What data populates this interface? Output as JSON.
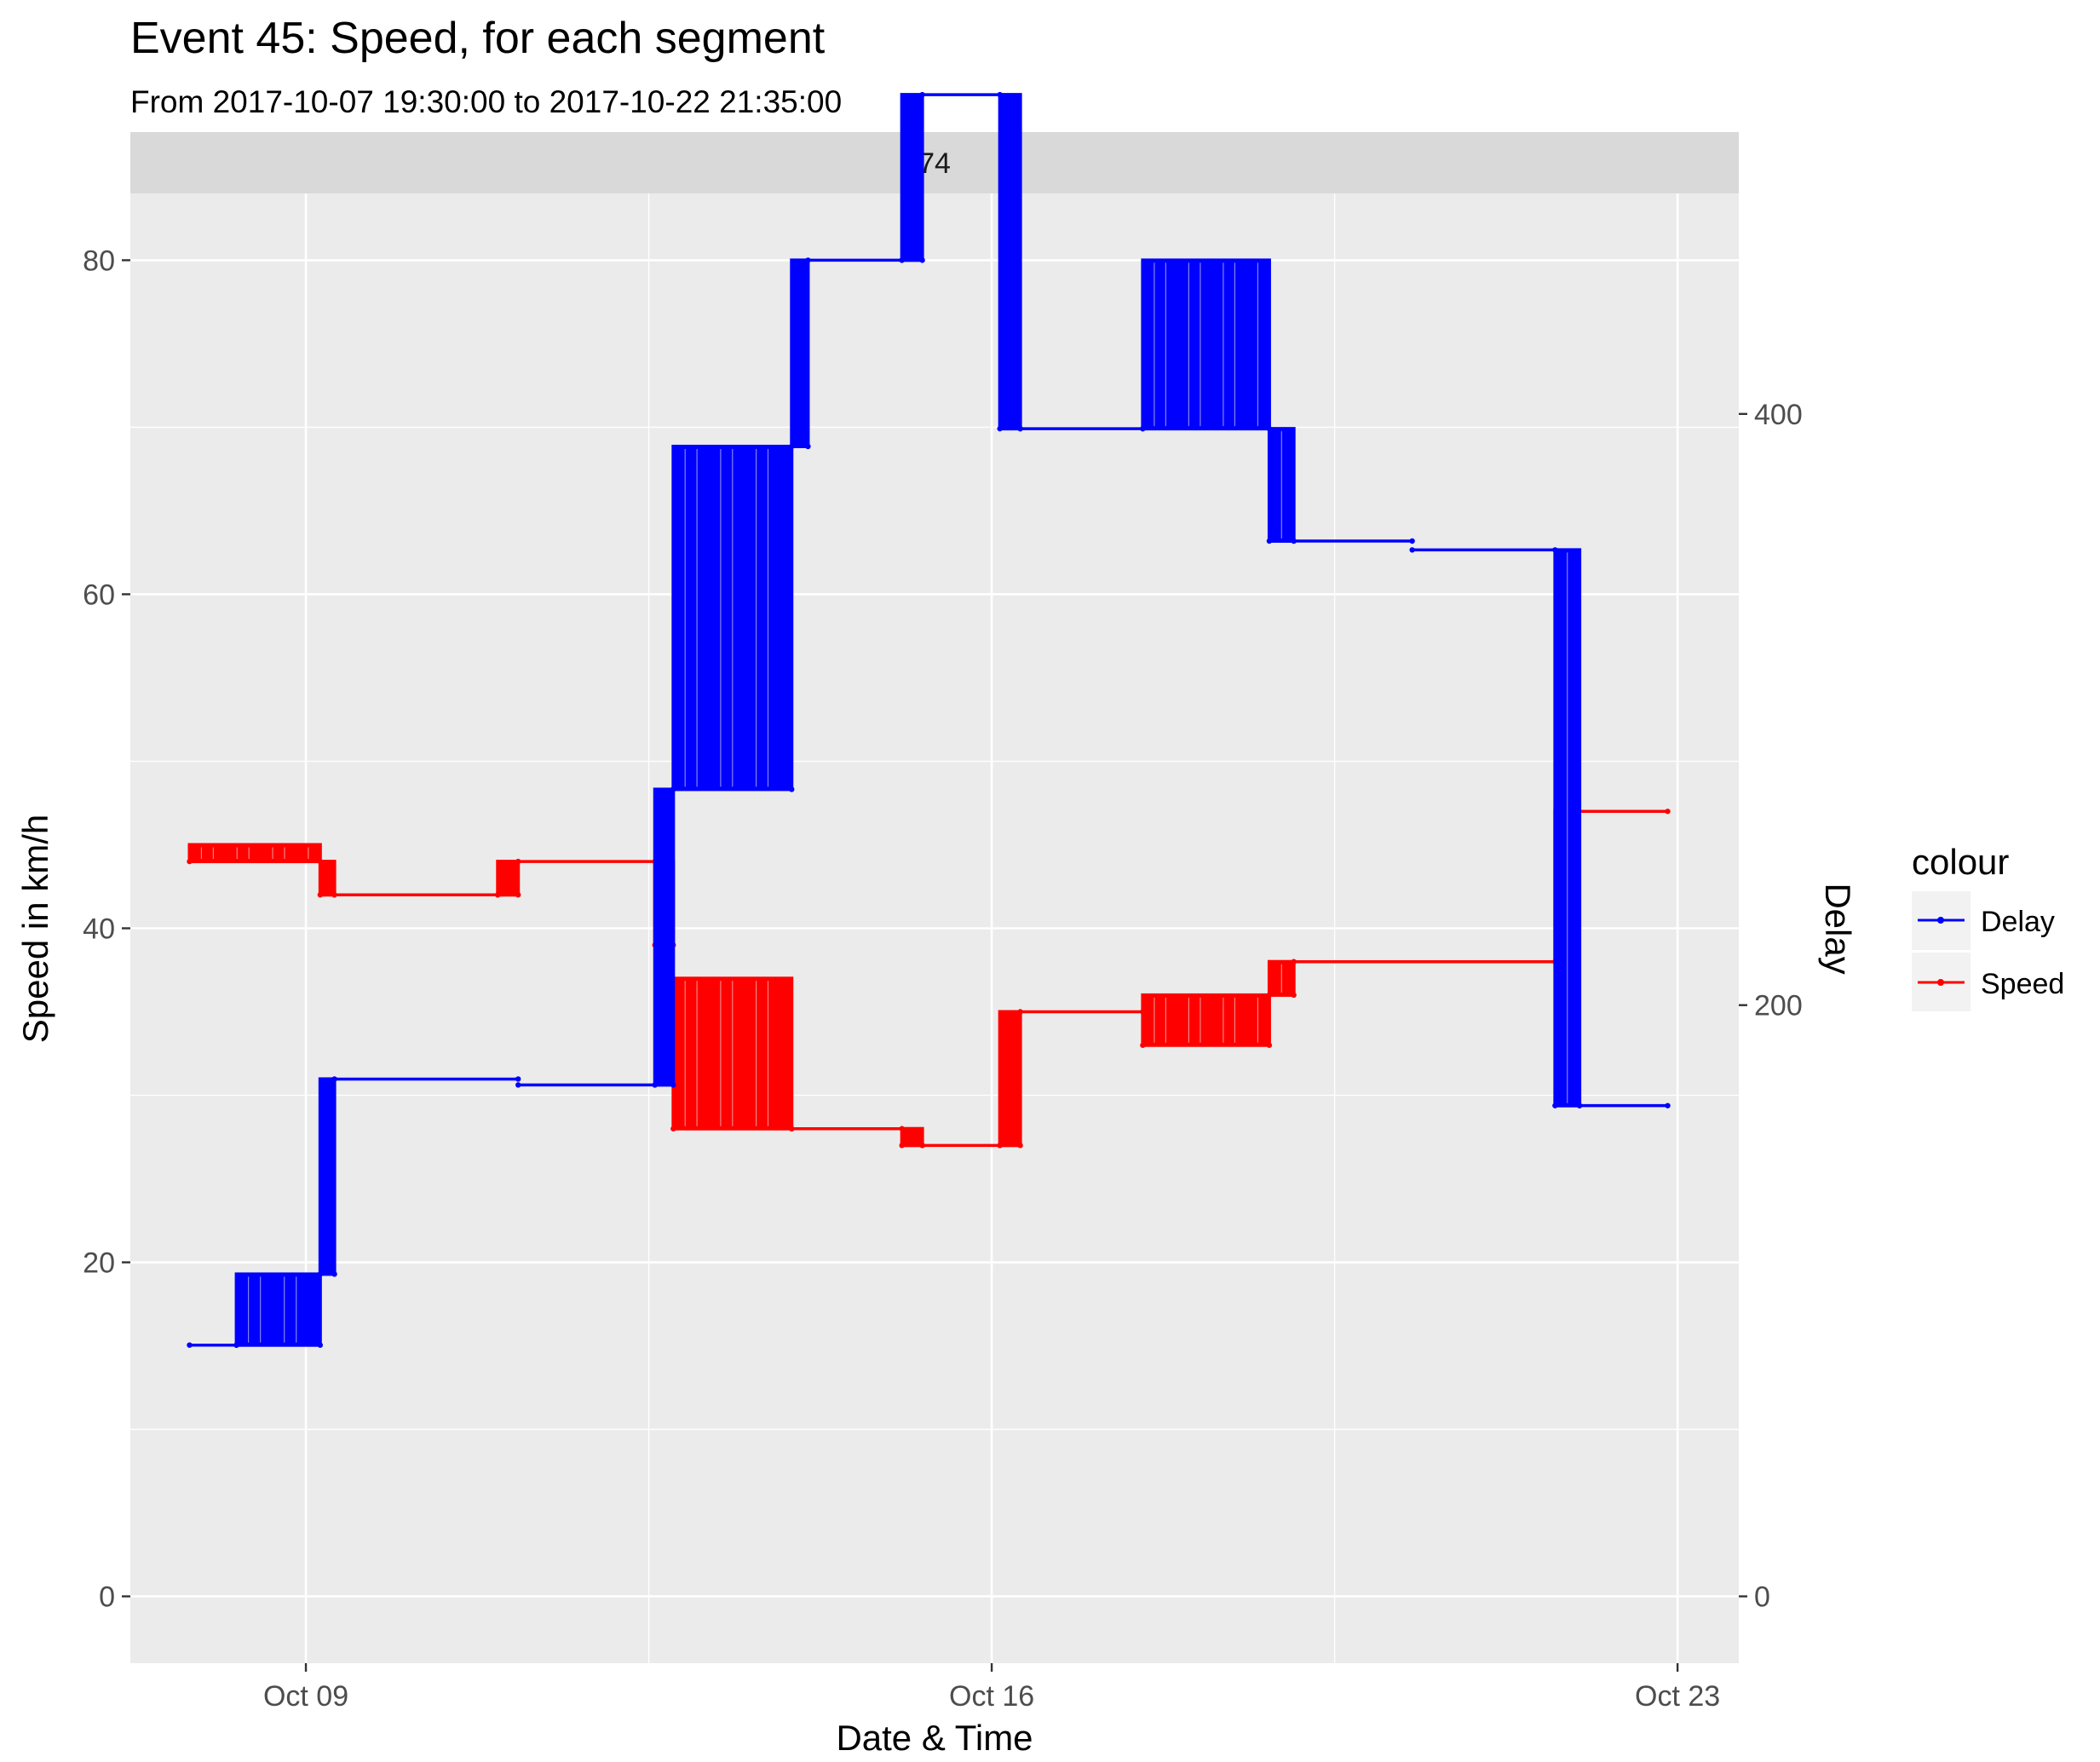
{
  "chart_data": {
    "type": "line",
    "title": "Event 45: Speed, for each segment",
    "subtitle": "From 2017-10-07 19:30:00 to 2017-10-22 21:35:00",
    "facet_label": "74",
    "xlabel": "Date & Time",
    "ylabel": "Speed in km/h",
    "ylabel_right": "Delay",
    "x_ticks": [
      "Oct 09",
      "Oct 16",
      "Oct 23"
    ],
    "y_ticks": [
      "0",
      "20",
      "40",
      "60",
      "80"
    ],
    "y_right_ticks": [
      "0",
      "200",
      "400"
    ],
    "xlim": [
      "2017-10-07 05:00",
      "2017-10-23 15:00"
    ],
    "ylim": [
      -4,
      84
    ],
    "y_right_lim": [
      -22.6,
      474.6
    ],
    "legend": {
      "title": "colour",
      "position": "right",
      "entries": [
        {
          "name": "Delay",
          "color": "#0000ff"
        },
        {
          "name": "Speed",
          "color": "#ff0000"
        }
      ]
    },
    "series": [
      {
        "name": "Speed",
        "color": "#ff0000",
        "axis": "left",
        "segments": [
          {
            "from": "2017-10-07 19:30",
            "to": "2017-10-09 03:30",
            "low": 44,
            "high": 45,
            "flicker": true
          },
          {
            "from": "2017-10-09 03:30",
            "to": "2017-10-09 07:00",
            "low": 42,
            "high": 44,
            "flicker": true
          },
          {
            "from": "2017-10-09 07:00",
            "to": "2017-10-10 23:00",
            "low": 42,
            "high": 42
          },
          {
            "from": "2017-10-10 23:00",
            "to": "2017-10-11 04:00",
            "low": 42,
            "high": 44,
            "flicker": true
          },
          {
            "from": "2017-10-11 04:00",
            "to": "2017-10-12 13:30",
            "low": 44,
            "high": 44
          },
          {
            "from": "2017-10-12 13:30",
            "to": "2017-10-12 18:00",
            "low": 39,
            "high": 44,
            "flicker": true
          },
          {
            "from": "2017-10-12 18:00",
            "to": "2017-10-13 23:00",
            "low": 28,
            "high": 37,
            "flicker": true
          },
          {
            "from": "2017-10-13 23:00",
            "to": "2017-10-15 02:00",
            "low": 28,
            "high": 28
          },
          {
            "from": "2017-10-15 02:00",
            "to": "2017-10-15 07:00",
            "low": 27,
            "high": 28,
            "flicker": true
          },
          {
            "from": "2017-10-15 07:00",
            "to": "2017-10-16 02:00",
            "low": 27,
            "high": 27
          },
          {
            "from": "2017-10-16 02:00",
            "to": "2017-10-16 07:00",
            "low": 27,
            "high": 35,
            "flicker": true
          },
          {
            "from": "2017-10-16 07:00",
            "to": "2017-10-17 13:00",
            "low": 35,
            "high": 35
          },
          {
            "from": "2017-10-17 13:00",
            "to": "2017-10-18 20:00",
            "low": 33,
            "high": 36,
            "flicker": true
          },
          {
            "from": "2017-10-18 20:00",
            "to": "2017-10-19 02:00",
            "low": 36,
            "high": 38,
            "flicker": true
          },
          {
            "from": "2017-10-19 02:00",
            "to": "2017-10-21 18:00",
            "low": 38,
            "high": 38
          },
          {
            "from": "2017-10-21 18:00",
            "to": "2017-10-21 18:30",
            "low": 38,
            "high": 47,
            "flicker": true
          },
          {
            "from": "2017-10-21 18:30",
            "to": "2017-10-22 21:35",
            "low": 47,
            "high": 47
          }
        ]
      },
      {
        "name": "Delay",
        "color": "#0000ff",
        "axis": "right",
        "segments": [
          {
            "from": "2017-10-07 19:30",
            "to": "2017-10-08 07:00",
            "low": 85,
            "high": 85
          },
          {
            "from": "2017-10-08 07:00",
            "to": "2017-10-09 03:30",
            "low": 85,
            "high": 109,
            "flicker": true
          },
          {
            "from": "2017-10-09 03:30",
            "to": "2017-10-09 07:00",
            "low": 109,
            "high": 175,
            "flicker": true
          },
          {
            "from": "2017-10-09 07:00",
            "to": "2017-10-11 04:00",
            "low": 175,
            "high": 175
          },
          {
            "from": "2017-10-11 04:00",
            "to": "2017-10-12 13:30",
            "low": 173,
            "high": 173
          },
          {
            "from": "2017-10-12 13:30",
            "to": "2017-10-12 18:00",
            "low": 173,
            "high": 273,
            "flicker": true
          },
          {
            "from": "2017-10-12 18:00",
            "to": "2017-10-13 23:00",
            "low": 273,
            "high": 389,
            "flicker": true
          },
          {
            "from": "2017-10-13 23:00",
            "to": "2017-10-14 03:00",
            "low": 389,
            "high": 452,
            "flicker": true
          },
          {
            "from": "2017-10-14 03:00",
            "to": "2017-10-15 02:00",
            "low": 452,
            "high": 452
          },
          {
            "from": "2017-10-15 02:00",
            "to": "2017-10-15 07:00",
            "low": 452,
            "high": 508,
            "flicker": true
          },
          {
            "from": "2017-10-15 07:00",
            "to": "2017-10-16 02:00",
            "low": 508,
            "high": 508
          },
          {
            "from": "2017-10-16 02:00",
            "to": "2017-10-16 07:00",
            "low": 395,
            "high": 508,
            "flicker": true
          },
          {
            "from": "2017-10-16 07:00",
            "to": "2017-10-17 13:00",
            "low": 395,
            "high": 395
          },
          {
            "from": "2017-10-17 13:00",
            "to": "2017-10-18 20:00",
            "low": 395,
            "high": 452,
            "flicker": true
          },
          {
            "from": "2017-10-18 20:00",
            "to": "2017-10-19 02:00",
            "low": 357,
            "high": 395,
            "flicker": true
          },
          {
            "from": "2017-10-19 02:00",
            "to": "2017-10-20 07:00",
            "low": 357,
            "high": 357
          },
          {
            "from": "2017-10-20 07:00",
            "to": "2017-10-21 18:00",
            "low": 354,
            "high": 354
          },
          {
            "from": "2017-10-21 18:00",
            "to": "2017-10-22 00:00",
            "low": 166,
            "high": 354,
            "flicker": true
          },
          {
            "from": "2017-10-22 00:00",
            "to": "2017-10-22 21:35",
            "low": 166,
            "high": 166
          }
        ]
      }
    ]
  }
}
